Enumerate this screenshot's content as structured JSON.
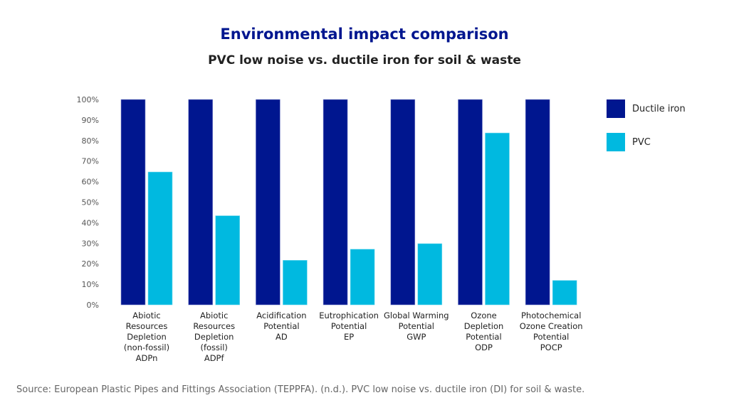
{
  "chart_data": {
    "type": "bar",
    "title": "Environmental impact comparison",
    "subtitle": "PVC low noise vs. ductile iron for soil & waste",
    "categories": [
      [
        "Abiotic",
        "Resources",
        "Depletion",
        "(non-fossil)",
        "ADPn"
      ],
      [
        "Abiotic",
        "Resources",
        "Depletion",
        "(fossil)",
        "ADPf"
      ],
      [
        "Acidification",
        "Potential",
        "AD"
      ],
      [
        "Eutrophication",
        "Potential",
        "EP"
      ],
      [
        "Global Warming",
        "Potential",
        "GWP"
      ],
      [
        "Ozone",
        "Depletion",
        "Potential",
        "ODP"
      ],
      [
        "Photochemical",
        "Ozone Creation",
        "Potential",
        "POCP"
      ]
    ],
    "series": [
      {
        "name": "Ductile iron",
        "color": "#00168f",
        "values": [
          100,
          100,
          100,
          100,
          100,
          100,
          100
        ]
      },
      {
        "name": "PVC",
        "color": "#00b9e0",
        "values": [
          64.7,
          43.4,
          21.7,
          27.1,
          29.8,
          83.7,
          11.9
        ]
      }
    ],
    "yticks": [
      "0%",
      "10%",
      "20%",
      "30%",
      "40%",
      "50%",
      "60%",
      "70%",
      "80%",
      "90%",
      "100%"
    ],
    "ylim": [
      0,
      100
    ],
    "grid": false,
    "legend": "right",
    "source": "Source: European Plastic Pipes and Fittings Association (TEPPFA). (n.d.). PVC low noise vs. ductile iron (DI) for soil & waste."
  }
}
